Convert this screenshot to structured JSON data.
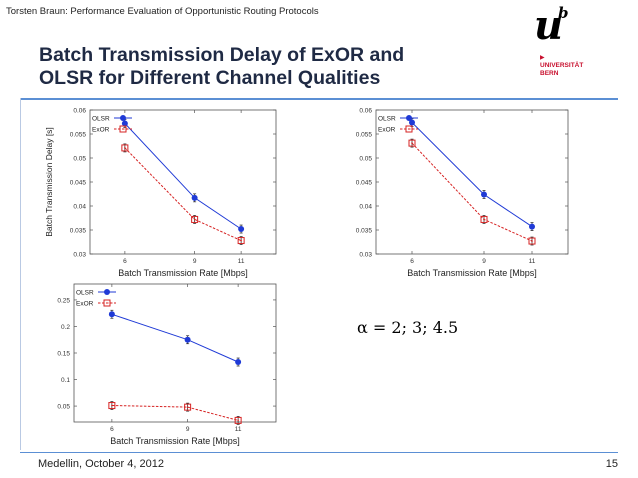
{
  "header": {
    "text": "Torsten Braun: Performance Evaluation of Opportunistic Routing Protocols"
  },
  "logo": {
    "letter": "u",
    "superscript": "b",
    "university_line1": "UNIVERSITÄT",
    "university_line2": "BERN"
  },
  "slide": {
    "title_line1": "Batch Transmission Delay of ExOR and",
    "title_line2": "OLSR for Different Channel Qualities",
    "formula": "α = 2; 3; 4.5"
  },
  "footer": {
    "left": "Medellin, October 4, 2012",
    "page": "15"
  },
  "colors": {
    "olsr": "#1f3ad6",
    "exor": "#d62222",
    "accent": "#5b8fd4",
    "title": "#1f2a44"
  },
  "chart_data": [
    {
      "type": "line",
      "name": "alpha-2",
      "xlabel": "Batch Transmission Rate [Mbps]",
      "ylabel": "Batch Transmission Delay [s]",
      "x": [
        6,
        9,
        11
      ],
      "xticks": [
        "6",
        "9",
        "11"
      ],
      "xlim": [
        4.5,
        12.5
      ],
      "ylim": [
        0.03,
        0.06
      ],
      "yticks": [
        0.03,
        0.035,
        0.04,
        0.045,
        0.05,
        0.055,
        0.06
      ],
      "ytick_labels": [
        "0.03",
        "0.035",
        "0.04",
        "0.045",
        "0.05",
        "0.055",
        "0.06"
      ],
      "legend": "top-left",
      "series": [
        {
          "name": "OLSR",
          "values": [
            0.0572,
            0.0417,
            0.0352
          ]
        },
        {
          "name": "ExOR",
          "values": [
            0.0521,
            0.0372,
            0.0328
          ]
        }
      ]
    },
    {
      "type": "line",
      "name": "alpha-3",
      "xlabel": "Batch Transmission Rate [Mbps]",
      "ylabel": "",
      "x": [
        6,
        9,
        11
      ],
      "xticks": [
        "6",
        "9",
        "11"
      ],
      "xlim": [
        4.5,
        12.5
      ],
      "ylim": [
        0.03,
        0.06
      ],
      "yticks": [
        0.03,
        0.035,
        0.04,
        0.045,
        0.05,
        0.055,
        0.06
      ],
      "ytick_labels": [
        "0.03",
        "0.035",
        "0.04",
        "0.045",
        "0.05",
        "0.055",
        "0.06"
      ],
      "legend": "top-left",
      "series": [
        {
          "name": "OLSR",
          "values": [
            0.0574,
            0.0424,
            0.0357
          ]
        },
        {
          "name": "ExOR",
          "values": [
            0.0531,
            0.0372,
            0.0327
          ]
        }
      ]
    },
    {
      "type": "line",
      "name": "alpha-4.5",
      "xlabel": "Batch Transmission Rate [Mbps]",
      "ylabel": "",
      "x": [
        6,
        9,
        11
      ],
      "xticks": [
        "6",
        "9",
        "11"
      ],
      "xlim": [
        4.5,
        12.5
      ],
      "ylim": [
        0.02,
        0.28
      ],
      "yticks": [
        0.05,
        0.1,
        0.15,
        0.2,
        0.25
      ],
      "ytick_labels": [
        "0.05",
        "0.1",
        "0.15",
        "0.2",
        "0.25"
      ],
      "legend": "top-left",
      "series": [
        {
          "name": "OLSR",
          "values": [
            0.223,
            0.175,
            0.133
          ]
        },
        {
          "name": "ExOR",
          "values": [
            0.051,
            0.048,
            0.023
          ]
        }
      ]
    }
  ]
}
